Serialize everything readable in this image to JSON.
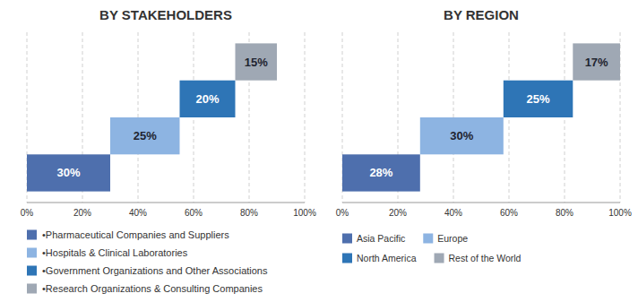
{
  "chart_data": [
    {
      "type": "waterfall",
      "orientation": "horizontal",
      "title": "BY STAKEHOLDERS",
      "categories": [
        "•Pharmaceutical Companies and Suppliers",
        "•Hospitals & Clinical Laboratories",
        "•Government Organizations and Other Associations",
        "•Research Organizations & Consulting Companies"
      ],
      "values": [
        30,
        25,
        20,
        15
      ],
      "value_labels": [
        "30%",
        "25%",
        "20%",
        "15%"
      ],
      "colors": [
        "#4e6fad",
        "#8db4e2",
        "#2e75b6",
        "#9fa8b4"
      ],
      "data_labels": true,
      "xlim": [
        0,
        100
      ],
      "xticks": [
        {
          "value": 0,
          "label": "0%"
        },
        {
          "value": 20,
          "label": "20%"
        },
        {
          "value": 40,
          "label": "40%"
        },
        {
          "value": 60,
          "label": "60%"
        },
        {
          "value": 80,
          "label": "80%"
        },
        {
          "value": 100,
          "label": "100%"
        }
      ],
      "grid": true,
      "legend": "bottom",
      "tick_labels": "x"
    },
    {
      "type": "waterfall",
      "orientation": "horizontal",
      "title": "BY REGION",
      "categories": [
        "Asia Pacific",
        "Europe",
        "North America",
        "Rest of the World"
      ],
      "values": [
        28,
        30,
        25,
        17
      ],
      "value_labels": [
        "28%",
        "30%",
        "25%",
        "17%"
      ],
      "colors": [
        "#4e6fad",
        "#8db4e2",
        "#2e75b6",
        "#9fa8b4"
      ],
      "data_labels": true,
      "xlim": [
        0,
        100
      ],
      "xticks": [
        {
          "value": 0,
          "label": "0%"
        },
        {
          "value": 20,
          "label": "20%"
        },
        {
          "value": 40,
          "label": "40%"
        },
        {
          "value": 60,
          "label": "60%"
        },
        {
          "value": 80,
          "label": "80%"
        },
        {
          "value": 100,
          "label": "100%"
        }
      ],
      "grid": true,
      "legend": "bottom",
      "tick_labels": "x"
    }
  ]
}
